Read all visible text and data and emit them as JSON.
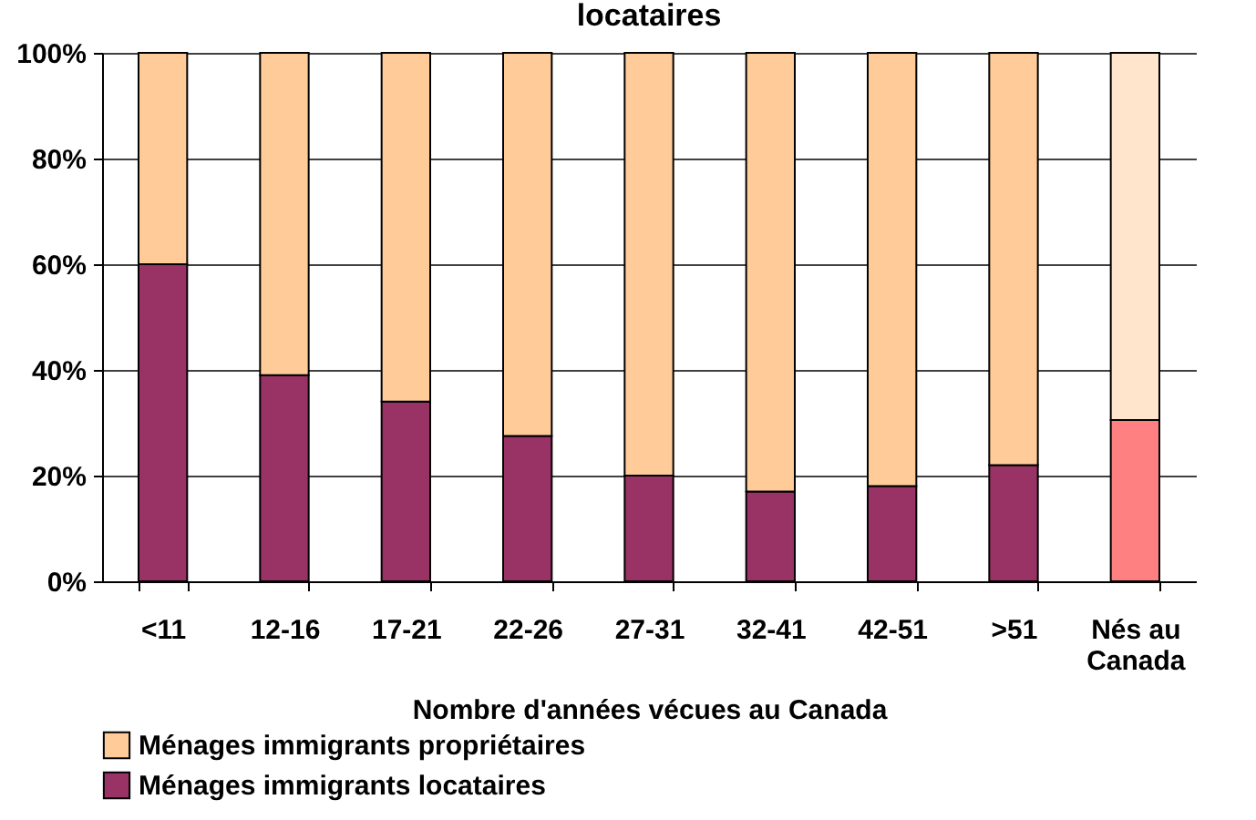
{
  "chart_data": {
    "type": "bar",
    "title": "locataires",
    "xlabel": "Nombre d'années vécues au Canada",
    "stacked": true,
    "categories": [
      "<11",
      "12-16",
      "17-21",
      "22-26",
      "27-31",
      "32-41",
      "42-51",
      ">51",
      "Nés au Canada"
    ],
    "series": [
      {
        "name": "Ménages immigrants locataires",
        "color": "#993366",
        "colors": [
          "#993366",
          "#993366",
          "#993366",
          "#993366",
          "#993366",
          "#993366",
          "#993366",
          "#993366",
          "#ff8080"
        ],
        "values": [
          60,
          39,
          34,
          27.5,
          20,
          17,
          18,
          22,
          30.5
        ]
      },
      {
        "name": "Ménages immigrants propriétaires",
        "color": "#ffcc99",
        "colors": [
          "#ffcc99",
          "#ffcc99",
          "#ffcc99",
          "#ffcc99",
          "#ffcc99",
          "#ffcc99",
          "#ffcc99",
          "#ffcc99",
          "#ffe5cc"
        ],
        "values": [
          40,
          61,
          66,
          72.5,
          80,
          83,
          82,
          78,
          69.5
        ]
      }
    ],
    "ylim": [
      0,
      100
    ],
    "yticks": [
      {
        "value": 0,
        "label": "0%"
      },
      {
        "value": 20,
        "label": "20%"
      },
      {
        "value": 40,
        "label": "40%"
      },
      {
        "value": 60,
        "label": "60%"
      },
      {
        "value": 80,
        "label": "80%"
      },
      {
        "value": 100,
        "label": "100%"
      }
    ],
    "grid": "y",
    "legend": "bottom"
  }
}
